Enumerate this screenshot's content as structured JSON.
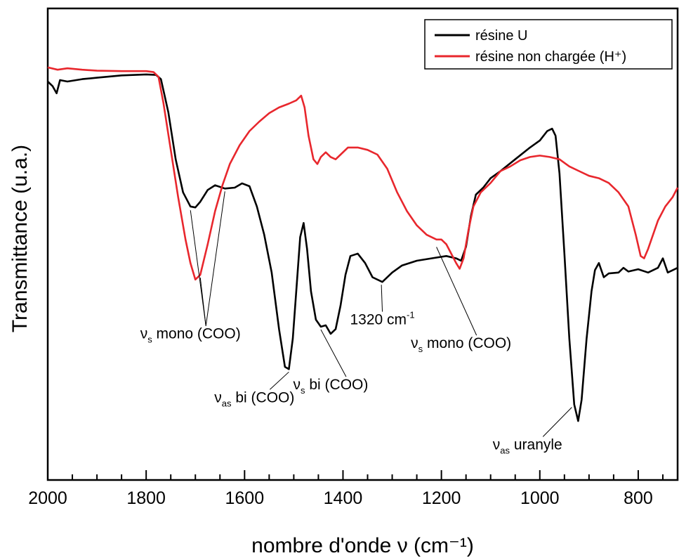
{
  "chart_data": {
    "type": "line",
    "xlabel": "nombre d'onde ν (cm⁻¹)",
    "ylabel": "Transmittance (u.a.)",
    "xlim": [
      2000,
      720
    ],
    "x_reversed": true,
    "ylim": [
      0,
      100
    ],
    "y_tick_labels_shown": false,
    "grid": false,
    "legend_position": "top-right",
    "x_ticks": [
      2000,
      1800,
      1600,
      1400,
      1200,
      1000,
      800
    ],
    "x_tick_labels": [
      "2000",
      "1800",
      "1600",
      "1400",
      "1200",
      "1000",
      "800"
    ],
    "series": [
      {
        "name": "résine U",
        "color": "#000000",
        "points": [
          [
            2000,
            84.5
          ],
          [
            1990,
            83.5
          ],
          [
            1982,
            82.0
          ],
          [
            1975,
            84.8
          ],
          [
            1960,
            84.5
          ],
          [
            1930,
            85.0
          ],
          [
            1900,
            85.3
          ],
          [
            1850,
            85.8
          ],
          [
            1800,
            86.0
          ],
          [
            1780,
            85.9
          ],
          [
            1770,
            85.0
          ],
          [
            1755,
            78.0
          ],
          [
            1740,
            68.0
          ],
          [
            1725,
            61.0
          ],
          [
            1710,
            58.0
          ],
          [
            1700,
            57.8
          ],
          [
            1690,
            59.0
          ],
          [
            1675,
            61.5
          ],
          [
            1660,
            62.5
          ],
          [
            1640,
            61.8
          ],
          [
            1620,
            62.0
          ],
          [
            1605,
            62.9
          ],
          [
            1590,
            62.3
          ],
          [
            1575,
            58.0
          ],
          [
            1560,
            52.0
          ],
          [
            1545,
            44.0
          ],
          [
            1530,
            32.0
          ],
          [
            1518,
            24.0
          ],
          [
            1510,
            23.5
          ],
          [
            1502,
            30.0
          ],
          [
            1495,
            40.0
          ],
          [
            1487,
            51.5
          ],
          [
            1480,
            54.5
          ],
          [
            1473,
            49.0
          ],
          [
            1465,
            40.0
          ],
          [
            1455,
            34.0
          ],
          [
            1445,
            32.5
          ],
          [
            1435,
            32.8
          ],
          [
            1425,
            31.0
          ],
          [
            1415,
            32.0
          ],
          [
            1405,
            37.0
          ],
          [
            1395,
            43.5
          ],
          [
            1385,
            47.5
          ],
          [
            1370,
            48.0
          ],
          [
            1355,
            46.0
          ],
          [
            1340,
            43.0
          ],
          [
            1320,
            42.0
          ],
          [
            1300,
            44.0
          ],
          [
            1280,
            45.5
          ],
          [
            1250,
            46.5
          ],
          [
            1220,
            47.0
          ],
          [
            1190,
            47.5
          ],
          [
            1170,
            47.0
          ],
          [
            1160,
            46.5
          ],
          [
            1150,
            49.5
          ],
          [
            1140,
            56.0
          ],
          [
            1130,
            60.5
          ],
          [
            1115,
            62.0
          ],
          [
            1100,
            64.0
          ],
          [
            1080,
            65.5
          ],
          [
            1050,
            68.0
          ],
          [
            1020,
            70.5
          ],
          [
            1000,
            72.0
          ],
          [
            985,
            74.0
          ],
          [
            975,
            74.5
          ],
          [
            968,
            73.0
          ],
          [
            960,
            65.0
          ],
          [
            950,
            48.0
          ],
          [
            940,
            30.0
          ],
          [
            930,
            16.0
          ],
          [
            922,
            12.5
          ],
          [
            915,
            17.0
          ],
          [
            905,
            30.0
          ],
          [
            895,
            40.0
          ],
          [
            888,
            44.5
          ],
          [
            880,
            46.0
          ],
          [
            870,
            43.0
          ],
          [
            860,
            43.8
          ],
          [
            840,
            44.0
          ],
          [
            830,
            45.0
          ],
          [
            820,
            44.2
          ],
          [
            800,
            44.7
          ],
          [
            780,
            44.0
          ],
          [
            760,
            45.0
          ],
          [
            750,
            47.0
          ],
          [
            740,
            44.0
          ],
          [
            720,
            45.0
          ]
        ]
      },
      {
        "name": "résine non chargée (H⁺)",
        "color": "#e8272d",
        "points": [
          [
            2000,
            87.5
          ],
          [
            1980,
            87.0
          ],
          [
            1960,
            87.3
          ],
          [
            1930,
            87.0
          ],
          [
            1900,
            86.8
          ],
          [
            1850,
            86.7
          ],
          [
            1800,
            86.7
          ],
          [
            1785,
            86.5
          ],
          [
            1775,
            85.5
          ],
          [
            1765,
            80.0
          ],
          [
            1750,
            70.0
          ],
          [
            1735,
            60.0
          ],
          [
            1720,
            51.0
          ],
          [
            1710,
            46.0
          ],
          [
            1700,
            42.5
          ],
          [
            1690,
            43.5
          ],
          [
            1675,
            50.0
          ],
          [
            1660,
            57.0
          ],
          [
            1645,
            62.5
          ],
          [
            1630,
            67.0
          ],
          [
            1610,
            71.0
          ],
          [
            1590,
            74.0
          ],
          [
            1570,
            76.0
          ],
          [
            1550,
            77.8
          ],
          [
            1530,
            79.0
          ],
          [
            1510,
            79.8
          ],
          [
            1495,
            80.5
          ],
          [
            1485,
            81.5
          ],
          [
            1478,
            79.0
          ],
          [
            1470,
            73.0
          ],
          [
            1460,
            68.0
          ],
          [
            1452,
            67.0
          ],
          [
            1445,
            68.5
          ],
          [
            1435,
            69.5
          ],
          [
            1425,
            68.5
          ],
          [
            1415,
            68.0
          ],
          [
            1405,
            69.0
          ],
          [
            1390,
            70.5
          ],
          [
            1370,
            70.5
          ],
          [
            1350,
            70.0
          ],
          [
            1330,
            69.0
          ],
          [
            1310,
            66.0
          ],
          [
            1290,
            61.0
          ],
          [
            1270,
            57.0
          ],
          [
            1250,
            54.0
          ],
          [
            1230,
            52.0
          ],
          [
            1210,
            51.0
          ],
          [
            1200,
            51.0
          ],
          [
            1190,
            50.0
          ],
          [
            1180,
            48.0
          ],
          [
            1170,
            46.0
          ],
          [
            1163,
            44.8
          ],
          [
            1155,
            47.0
          ],
          [
            1145,
            53.0
          ],
          [
            1135,
            58.0
          ],
          [
            1120,
            61.0
          ],
          [
            1100,
            63.0
          ],
          [
            1080,
            65.5
          ],
          [
            1060,
            66.5
          ],
          [
            1040,
            67.8
          ],
          [
            1020,
            68.5
          ],
          [
            1000,
            68.8
          ],
          [
            980,
            68.5
          ],
          [
            960,
            68.0
          ],
          [
            940,
            66.5
          ],
          [
            920,
            65.5
          ],
          [
            900,
            64.5
          ],
          [
            880,
            64.0
          ],
          [
            860,
            63.0
          ],
          [
            840,
            61.0
          ],
          [
            820,
            58.0
          ],
          [
            805,
            52.0
          ],
          [
            795,
            47.5
          ],
          [
            788,
            47.0
          ],
          [
            780,
            49.0
          ],
          [
            770,
            52.0
          ],
          [
            760,
            55.0
          ],
          [
            745,
            58.0
          ],
          [
            730,
            60.0
          ],
          [
            720,
            62.0
          ]
        ]
      }
    ],
    "annotations": [
      {
        "label_main": "ν",
        "label_sub": "s",
        "label_rest": " mono (COO)",
        "text_at": [
          1710,
          30.0
        ],
        "targets": [
          [
            1710,
            57.8
          ],
          [
            1690,
            43.5
          ],
          [
            1640,
            61.8
          ]
        ]
      },
      {
        "label_main": "ν",
        "label_sub": "as",
        "label_rest": " bi (COO)",
        "text_at": [
          1580,
          16.5
        ],
        "targets": [
          [
            1510,
            23.5
          ]
        ]
      },
      {
        "label_main": "ν",
        "label_sub": "s",
        "label_rest": " bi (COO)",
        "text_at": [
          1425,
          19.2
        ],
        "targets": [
          [
            1445,
            32.5
          ]
        ]
      },
      {
        "label_main": "1320 cm",
        "label_sup": "-1",
        "text_at": [
          1320,
          33.0
        ],
        "targets": [
          [
            1322,
            42.0
          ]
        ]
      },
      {
        "label_main": "ν",
        "label_sub": "s",
        "label_rest": " mono (COO)",
        "text_at": [
          1160,
          28.0
        ],
        "targets": [
          [
            1210,
            50.0
          ]
        ]
      },
      {
        "label_main": "ν",
        "label_sub": "as",
        "label_rest": " uranyle",
        "text_at": [
          1025,
          6.5
        ],
        "targets": [
          [
            935,
            16.0
          ]
        ]
      }
    ]
  }
}
